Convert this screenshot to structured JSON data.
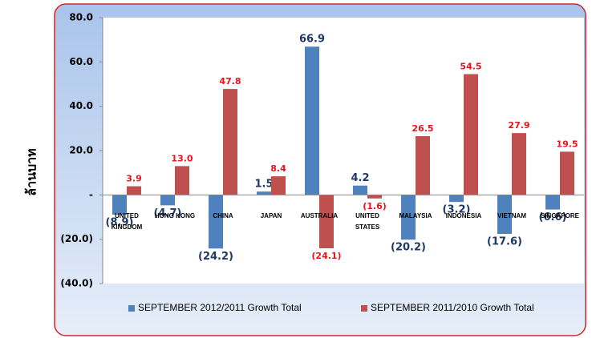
{
  "chart_data": {
    "type": "bar",
    "y_label": "ล้านบาท",
    "categories": [
      "UNITED KINGDOM",
      "HONG KONG",
      "CHINA",
      "JAPAN",
      "AUSTRALIA",
      "UNITED STATES",
      "MALAYSIA",
      "INDONESIA",
      "VIETNAM",
      "SINGAPORE"
    ],
    "series": [
      {
        "name": "SEPTEMBER 2012/2011 Growth Total",
        "color": "#4f81bd",
        "label_color": "#1f3864",
        "values": [
          -8.9,
          -4.7,
          -24.2,
          1.5,
          66.9,
          4.2,
          -20.2,
          -3.2,
          -17.6,
          -6.6
        ],
        "value_labels": [
          "(8.9)",
          "(4.7)",
          "(24.2)",
          "1.5",
          "66.9",
          "4.2",
          "(20.2)",
          "(3.2)",
          "(17.6)",
          "(6.6)"
        ]
      },
      {
        "name": "SEPTEMBER 2011/2010 Growth Total",
        "color": "#c0504d",
        "label_color": "#e8141b",
        "values": [
          3.9,
          13.0,
          47.8,
          8.4,
          -24.1,
          -1.6,
          26.5,
          54.5,
          27.9,
          19.5
        ],
        "value_labels": [
          "3.9",
          "13.0",
          "47.8",
          "8.4",
          "(24.1)",
          "(1.6)",
          "26.5",
          "54.5",
          "27.9",
          "19.5"
        ]
      }
    ],
    "ylim": [
      -40,
      80
    ],
    "yticks": [
      {
        "value": 80,
        "label": "80.0"
      },
      {
        "value": 60,
        "label": "60.0"
      },
      {
        "value": 40,
        "label": "40.0"
      },
      {
        "value": 20,
        "label": "20.0"
      },
      {
        "value": 0,
        "label": "-"
      },
      {
        "value": -20,
        "label": "(20.0)"
      },
      {
        "value": -40,
        "label": "(40.0)"
      }
    ],
    "grid": false,
    "legend": "bottom"
  }
}
